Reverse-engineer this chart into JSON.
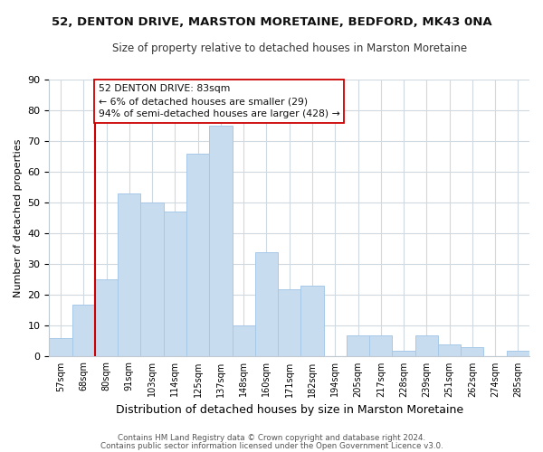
{
  "title": "52, DENTON DRIVE, MARSTON MORETAINE, BEDFORD, MK43 0NA",
  "subtitle": "Size of property relative to detached houses in Marston Moretaine",
  "xlabel": "Distribution of detached houses by size in Marston Moretaine",
  "ylabel": "Number of detached properties",
  "bar_color": "#c8dcf0",
  "bar_edge_color": "#a8c8e8",
  "categories": [
    "57sqm",
    "68sqm",
    "80sqm",
    "91sqm",
    "103sqm",
    "114sqm",
    "125sqm",
    "137sqm",
    "148sqm",
    "160sqm",
    "171sqm",
    "182sqm",
    "194sqm",
    "205sqm",
    "217sqm",
    "228sqm",
    "239sqm",
    "251sqm",
    "262sqm",
    "274sqm",
    "285sqm"
  ],
  "values": [
    6,
    17,
    25,
    53,
    50,
    47,
    66,
    75,
    10,
    34,
    22,
    23,
    0,
    7,
    7,
    2,
    7,
    4,
    3,
    0,
    2
  ],
  "ylim": [
    0,
    90
  ],
  "yticks": [
    0,
    10,
    20,
    30,
    40,
    50,
    60,
    70,
    80,
    90
  ],
  "vline_index": 2,
  "vline_color": "#cc0000",
  "annotation_line1": "52 DENTON DRIVE: 83sqm",
  "annotation_line2": "← 6% of detached houses are smaller (29)",
  "annotation_line3": "94% of semi-detached houses are larger (428) →",
  "annotation_box_color": "#ffffff",
  "annotation_box_edge": "#cc0000",
  "footer1": "Contains HM Land Registry data © Crown copyright and database right 2024.",
  "footer2": "Contains public sector information licensed under the Open Government Licence v3.0.",
  "background_color": "#ffffff",
  "grid_color": "#d0d8e0"
}
